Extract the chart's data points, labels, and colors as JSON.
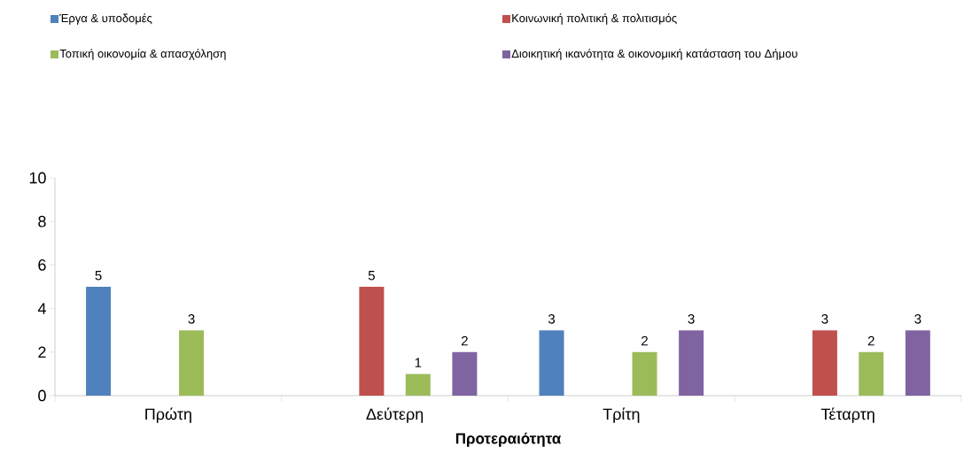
{
  "chart_data": {
    "type": "bar",
    "xlabel": "Προτεραιότητα",
    "categories": [
      "Πρώτη",
      "Δεύτερη",
      "Τρίτη",
      "Τέταρτη"
    ],
    "series": [
      {
        "name": "Έργα & υποδομές",
        "color": "#4f81bd",
        "values": [
          5,
          null,
          3,
          null
        ]
      },
      {
        "name": "Κοινωνική πολιτική & πολιτισμός",
        "color": "#c0504d",
        "values": [
          null,
          5,
          null,
          3
        ]
      },
      {
        "name": "Τοπική οικονομία & απασχόληση",
        "color": "#9bbb59",
        "values": [
          3,
          1,
          2,
          2
        ]
      },
      {
        "name": "Διοικητική ικανότητα & οικονομική κατάσταση του Δήμου",
        "color": "#8064a2",
        "values": [
          null,
          2,
          3,
          3
        ]
      }
    ],
    "ylim": [
      0,
      10
    ],
    "yticks": [
      0,
      2,
      4,
      6,
      8,
      10
    ],
    "grid": false,
    "legend": "top",
    "data_labels": true
  }
}
